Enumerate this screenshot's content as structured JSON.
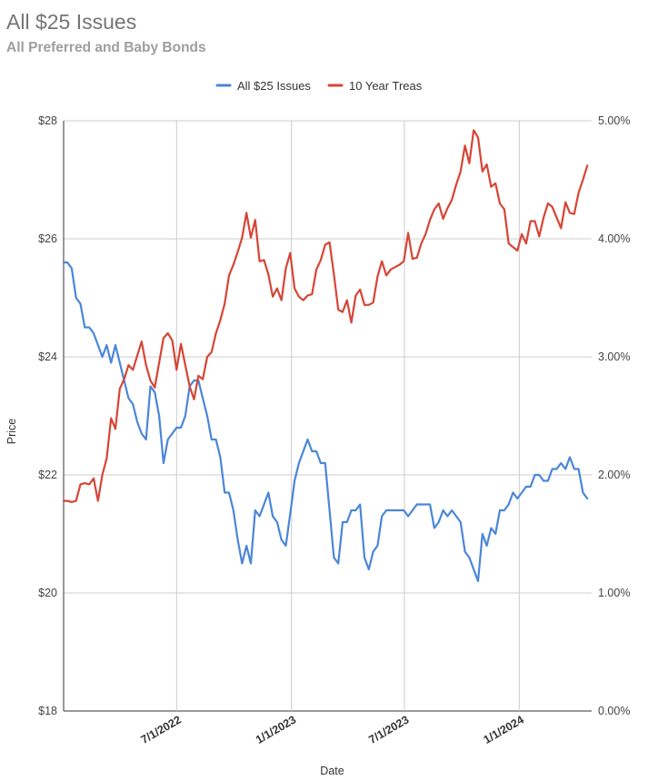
{
  "chart_data": {
    "type": "line",
    "title": "All $25 Issues",
    "subtitle": "All Preferred and Baby Bonds",
    "xlabel": "Date",
    "ylabel": "Price",
    "x_ticks": [
      "7/1/2022",
      "1/1/2023",
      "7/1/2023",
      "1/1/2024"
    ],
    "x_range": [
      "2022-01-01",
      "2024-04-26"
    ],
    "y_left": {
      "ticks": [
        "$18",
        "$20",
        "$22",
        "$24",
        "$26",
        "$28"
      ],
      "ylim": [
        18,
        28
      ]
    },
    "y_right": {
      "ticks": [
        "0.00%",
        "1.00%",
        "2.00%",
        "3.00%",
        "4.00%",
        "5.00%"
      ],
      "ylim": [
        0,
        5
      ]
    },
    "legend_position": "top",
    "grid": true,
    "series": [
      {
        "name": "All $25 Issues",
        "axis": "left",
        "color": "#4a86d8",
        "points": [
          [
            "2022-01-01",
            25.6
          ],
          [
            "2022-01-07",
            25.6
          ],
          [
            "2022-01-14",
            25.5
          ],
          [
            "2022-01-21",
            25.0
          ],
          [
            "2022-01-28",
            24.9
          ],
          [
            "2022-02-04",
            24.5
          ],
          [
            "2022-02-11",
            24.5
          ],
          [
            "2022-02-18",
            24.4
          ],
          [
            "2022-02-25",
            24.2
          ],
          [
            "2022-03-04",
            24.0
          ],
          [
            "2022-03-11",
            24.2
          ],
          [
            "2022-03-18",
            23.9
          ],
          [
            "2022-03-25",
            24.2
          ],
          [
            "2022-04-01",
            23.9
          ],
          [
            "2022-04-08",
            23.6
          ],
          [
            "2022-04-15",
            23.3
          ],
          [
            "2022-04-22",
            23.2
          ],
          [
            "2022-04-29",
            22.9
          ],
          [
            "2022-05-06",
            22.7
          ],
          [
            "2022-05-13",
            22.6
          ],
          [
            "2022-05-20",
            23.5
          ],
          [
            "2022-05-27",
            23.4
          ],
          [
            "2022-06-03",
            23.0
          ],
          [
            "2022-06-10",
            22.2
          ],
          [
            "2022-06-17",
            22.6
          ],
          [
            "2022-06-24",
            22.7
          ],
          [
            "2022-07-01",
            22.8
          ],
          [
            "2022-07-08",
            22.8
          ],
          [
            "2022-07-15",
            23.0
          ],
          [
            "2022-07-22",
            23.5
          ],
          [
            "2022-07-29",
            23.6
          ],
          [
            "2022-08-05",
            23.6
          ],
          [
            "2022-08-12",
            23.3
          ],
          [
            "2022-08-19",
            23.0
          ],
          [
            "2022-08-26",
            22.6
          ],
          [
            "2022-09-02",
            22.6
          ],
          [
            "2022-09-09",
            22.3
          ],
          [
            "2022-09-16",
            21.7
          ],
          [
            "2022-09-23",
            21.7
          ],
          [
            "2022-09-30",
            21.4
          ],
          [
            "2022-10-07",
            20.9
          ],
          [
            "2022-10-14",
            20.5
          ],
          [
            "2022-10-21",
            20.8
          ],
          [
            "2022-10-28",
            20.5
          ],
          [
            "2022-11-04",
            21.4
          ],
          [
            "2022-11-11",
            21.3
          ],
          [
            "2022-11-18",
            21.5
          ],
          [
            "2022-11-25",
            21.7
          ],
          [
            "2022-12-02",
            21.3
          ],
          [
            "2022-12-09",
            21.2
          ],
          [
            "2022-12-16",
            20.9
          ],
          [
            "2022-12-23",
            20.8
          ],
          [
            "2023-01-01",
            21.5
          ],
          [
            "2023-01-06",
            21.9
          ],
          [
            "2023-01-13",
            22.2
          ],
          [
            "2023-01-20",
            22.4
          ],
          [
            "2023-01-27",
            22.6
          ],
          [
            "2023-02-03",
            22.4
          ],
          [
            "2023-02-10",
            22.4
          ],
          [
            "2023-02-17",
            22.2
          ],
          [
            "2023-02-24",
            22.2
          ],
          [
            "2023-03-03",
            21.4
          ],
          [
            "2023-03-10",
            20.6
          ],
          [
            "2023-03-17",
            20.5
          ],
          [
            "2023-03-24",
            21.2
          ],
          [
            "2023-03-31",
            21.2
          ],
          [
            "2023-04-07",
            21.4
          ],
          [
            "2023-04-14",
            21.4
          ],
          [
            "2023-04-21",
            21.5
          ],
          [
            "2023-04-28",
            20.6
          ],
          [
            "2023-05-05",
            20.4
          ],
          [
            "2023-05-12",
            20.7
          ],
          [
            "2023-05-19",
            20.8
          ],
          [
            "2023-05-26",
            21.3
          ],
          [
            "2023-06-02",
            21.4
          ],
          [
            "2023-06-09",
            21.4
          ],
          [
            "2023-06-16",
            21.4
          ],
          [
            "2023-06-23",
            21.4
          ],
          [
            "2023-06-30",
            21.4
          ],
          [
            "2023-07-07",
            21.3
          ],
          [
            "2023-07-14",
            21.4
          ],
          [
            "2023-07-21",
            21.5
          ],
          [
            "2023-07-28",
            21.5
          ],
          [
            "2023-08-04",
            21.5
          ],
          [
            "2023-08-11",
            21.5
          ],
          [
            "2023-08-18",
            21.1
          ],
          [
            "2023-08-25",
            21.2
          ],
          [
            "2023-09-01",
            21.4
          ],
          [
            "2023-09-08",
            21.3
          ],
          [
            "2023-09-15",
            21.4
          ],
          [
            "2023-09-22",
            21.3
          ],
          [
            "2023-09-29",
            21.2
          ],
          [
            "2023-10-06",
            20.7
          ],
          [
            "2023-10-13",
            20.6
          ],
          [
            "2023-10-20",
            20.4
          ],
          [
            "2023-10-27",
            20.2
          ],
          [
            "2023-11-03",
            21.0
          ],
          [
            "2023-11-10",
            20.8
          ],
          [
            "2023-11-17",
            21.1
          ],
          [
            "2023-11-24",
            21.0
          ],
          [
            "2023-12-01",
            21.4
          ],
          [
            "2023-12-08",
            21.4
          ],
          [
            "2023-12-15",
            21.5
          ],
          [
            "2023-12-22",
            21.7
          ],
          [
            "2023-12-29",
            21.6
          ],
          [
            "2024-01-05",
            21.7
          ],
          [
            "2024-01-12",
            21.8
          ],
          [
            "2024-01-19",
            21.8
          ],
          [
            "2024-01-26",
            22.0
          ],
          [
            "2024-02-02",
            22.0
          ],
          [
            "2024-02-09",
            21.9
          ],
          [
            "2024-02-16",
            21.9
          ],
          [
            "2024-02-23",
            22.1
          ],
          [
            "2024-03-01",
            22.1
          ],
          [
            "2024-03-08",
            22.2
          ],
          [
            "2024-03-15",
            22.1
          ],
          [
            "2024-03-22",
            22.3
          ],
          [
            "2024-03-29",
            22.1
          ],
          [
            "2024-04-05",
            22.1
          ],
          [
            "2024-04-12",
            21.7
          ],
          [
            "2024-04-19",
            21.6
          ]
        ]
      },
      {
        "name": "10 Year Treas",
        "axis": "right",
        "color": "#d64535",
        "points": [
          [
            "2022-01-01",
            1.78
          ],
          [
            "2022-01-07",
            1.78
          ],
          [
            "2022-01-14",
            1.77
          ],
          [
            "2022-01-21",
            1.78
          ],
          [
            "2022-01-28",
            1.92
          ],
          [
            "2022-02-04",
            1.93
          ],
          [
            "2022-02-11",
            1.92
          ],
          [
            "2022-02-18",
            1.97
          ],
          [
            "2022-02-25",
            1.78
          ],
          [
            "2022-03-04",
            2.0
          ],
          [
            "2022-03-11",
            2.14
          ],
          [
            "2022-03-18",
            2.48
          ],
          [
            "2022-03-25",
            2.39
          ],
          [
            "2022-04-01",
            2.73
          ],
          [
            "2022-04-08",
            2.81
          ],
          [
            "2022-04-15",
            2.93
          ],
          [
            "2022-04-22",
            2.89
          ],
          [
            "2022-05-06",
            3.13
          ],
          [
            "2022-05-13",
            2.93
          ],
          [
            "2022-05-20",
            2.8
          ],
          [
            "2022-05-27",
            2.74
          ],
          [
            "2022-06-03",
            2.95
          ],
          [
            "2022-06-10",
            3.16
          ],
          [
            "2022-06-17",
            3.2
          ],
          [
            "2022-06-24",
            3.14
          ],
          [
            "2022-07-01",
            2.89
          ],
          [
            "2022-07-08",
            3.11
          ],
          [
            "2022-07-15",
            2.93
          ],
          [
            "2022-07-22",
            2.75
          ],
          [
            "2022-07-29",
            2.64
          ],
          [
            "2022-08-05",
            2.84
          ],
          [
            "2022-08-12",
            2.81
          ],
          [
            "2022-08-19",
            3.0
          ],
          [
            "2022-08-26",
            3.04
          ],
          [
            "2022-09-02",
            3.2
          ],
          [
            "2022-09-09",
            3.31
          ],
          [
            "2022-09-16",
            3.45
          ],
          [
            "2022-09-23",
            3.69
          ],
          [
            "2022-09-30",
            3.78
          ],
          [
            "2022-10-07",
            3.89
          ],
          [
            "2022-10-14",
            4.01
          ],
          [
            "2022-10-21",
            4.22
          ],
          [
            "2022-10-28",
            4.01
          ],
          [
            "2022-11-04",
            4.16
          ],
          [
            "2022-11-11",
            3.81
          ],
          [
            "2022-11-18",
            3.82
          ],
          [
            "2022-11-25",
            3.7
          ],
          [
            "2022-12-02",
            3.51
          ],
          [
            "2022-12-09",
            3.58
          ],
          [
            "2022-12-16",
            3.48
          ],
          [
            "2022-12-23",
            3.75
          ],
          [
            "2022-12-30",
            3.88
          ],
          [
            "2023-01-06",
            3.58
          ],
          [
            "2023-01-13",
            3.51
          ],
          [
            "2023-01-20",
            3.48
          ],
          [
            "2023-01-27",
            3.52
          ],
          [
            "2023-02-03",
            3.53
          ],
          [
            "2023-02-10",
            3.74
          ],
          [
            "2023-02-17",
            3.82
          ],
          [
            "2023-02-24",
            3.95
          ],
          [
            "2023-03-03",
            3.97
          ],
          [
            "2023-03-10",
            3.7
          ],
          [
            "2023-03-17",
            3.4
          ],
          [
            "2023-03-24",
            3.38
          ],
          [
            "2023-03-31",
            3.48
          ],
          [
            "2023-04-07",
            3.29
          ],
          [
            "2023-04-14",
            3.52
          ],
          [
            "2023-04-21",
            3.57
          ],
          [
            "2023-04-28",
            3.44
          ],
          [
            "2023-05-05",
            3.44
          ],
          [
            "2023-05-12",
            3.46
          ],
          [
            "2023-05-19",
            3.68
          ],
          [
            "2023-05-26",
            3.81
          ],
          [
            "2023-06-02",
            3.69
          ],
          [
            "2023-06-09",
            3.74
          ],
          [
            "2023-06-16",
            3.76
          ],
          [
            "2023-06-23",
            3.78
          ],
          [
            "2023-06-30",
            3.81
          ],
          [
            "2023-07-07",
            4.05
          ],
          [
            "2023-07-14",
            3.83
          ],
          [
            "2023-07-21",
            3.84
          ],
          [
            "2023-07-28",
            3.96
          ],
          [
            "2023-08-04",
            4.04
          ],
          [
            "2023-08-11",
            4.16
          ],
          [
            "2023-08-18",
            4.25
          ],
          [
            "2023-08-25",
            4.3
          ],
          [
            "2023-09-01",
            4.17
          ],
          [
            "2023-09-08",
            4.26
          ],
          [
            "2023-09-15",
            4.33
          ],
          [
            "2023-09-22",
            4.46
          ],
          [
            "2023-09-29",
            4.57
          ],
          [
            "2023-10-06",
            4.79
          ],
          [
            "2023-10-13",
            4.64
          ],
          [
            "2023-10-20",
            4.92
          ],
          [
            "2023-10-27",
            4.86
          ],
          [
            "2023-11-03",
            4.57
          ],
          [
            "2023-11-10",
            4.63
          ],
          [
            "2023-11-17",
            4.44
          ],
          [
            "2023-11-24",
            4.47
          ],
          [
            "2023-12-01",
            4.3
          ],
          [
            "2023-12-08",
            4.25
          ],
          [
            "2023-12-15",
            3.96
          ],
          [
            "2023-12-22",
            3.93
          ],
          [
            "2023-12-29",
            3.9
          ],
          [
            "2024-01-05",
            4.04
          ],
          [
            "2024-01-12",
            3.96
          ],
          [
            "2024-01-19",
            4.15
          ],
          [
            "2024-01-26",
            4.15
          ],
          [
            "2024-02-02",
            4.02
          ],
          [
            "2024-02-09",
            4.18
          ],
          [
            "2024-02-16",
            4.3
          ],
          [
            "2024-02-23",
            4.27
          ],
          [
            "2024-03-01",
            4.18
          ],
          [
            "2024-03-08",
            4.09
          ],
          [
            "2024-03-15",
            4.31
          ],
          [
            "2024-03-22",
            4.22
          ],
          [
            "2024-03-29",
            4.21
          ],
          [
            "2024-04-05",
            4.39
          ],
          [
            "2024-04-12",
            4.5
          ],
          [
            "2024-04-19",
            4.62
          ]
        ]
      }
    ]
  }
}
